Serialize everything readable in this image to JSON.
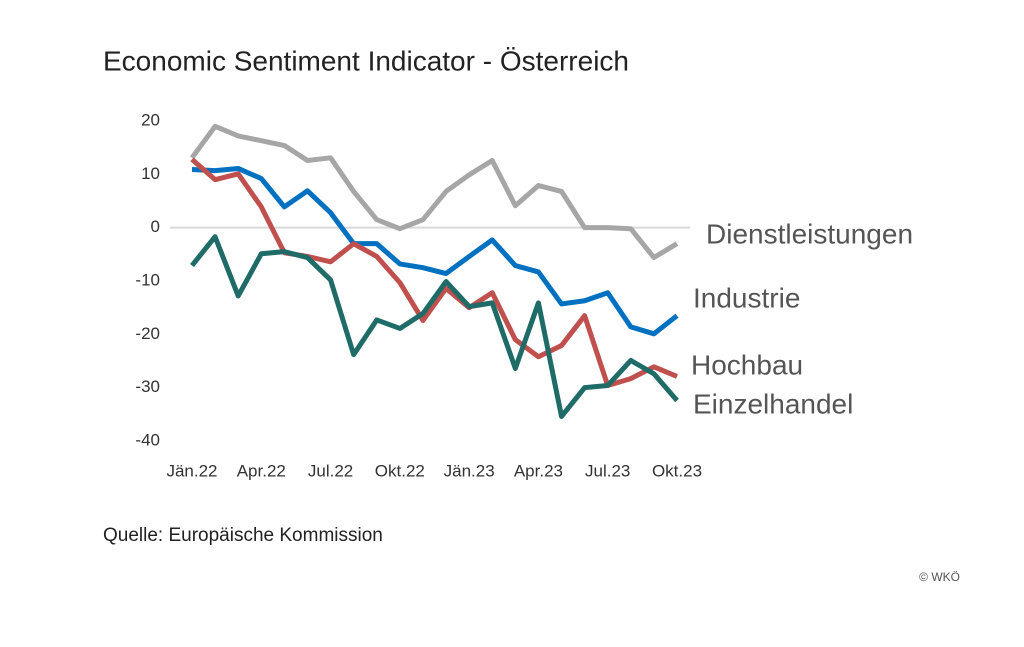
{
  "chart_data": {
    "type": "line",
    "title": "Economic Sentiment Indicator - Österreich",
    "source": "Quelle: Europäische Kommission",
    "copyright": "© WKÖ",
    "categories": [
      "Jän.22",
      null,
      null,
      "Apr.22",
      null,
      null,
      "Jul.22",
      null,
      null,
      "Okt.22",
      null,
      null,
      "Jän.23",
      null,
      null,
      "Apr.23",
      null,
      null,
      "Jul.23",
      null,
      null,
      "Okt.23"
    ],
    "series": [
      {
        "name": "Dienstleistungen",
        "color": "#a6a6a6",
        "values": [
          13.1,
          19,
          17.2,
          16.3,
          15.4,
          12.6,
          13.1,
          6.8,
          1.5,
          -0.2,
          1.5,
          6.8,
          9.9,
          12.6,
          4.1,
          7.9,
          6.8,
          0,
          0,
          -0.2,
          -5.6,
          -3
        ]
      },
      {
        "name": "Industrie",
        "color": "#0070c0",
        "values": [
          10.9,
          10.7,
          11.1,
          9.2,
          3.9,
          6.9,
          2.8,
          -3,
          -3,
          -6.8,
          -7.5,
          -8.6,
          -5.4,
          -2.3,
          -7.1,
          -8.3,
          -14.3,
          -13.7,
          -12.2,
          -18.6,
          -19.9,
          -16.5
        ]
      },
      {
        "name": "Hochbau",
        "color": "#c0504d",
        "values": [
          12.8,
          9,
          10.1,
          3.9,
          -4.7,
          -5.4,
          -6.4,
          -3,
          -5.4,
          -10.3,
          -17.4,
          -11.4,
          -15,
          -12.2,
          -21,
          -24.2,
          -22.1,
          -16.5,
          -29.6,
          -28.3,
          -26.1,
          -27.9
        ]
      },
      {
        "name": "Einzelhandel",
        "color": "#1f6b67",
        "values": [
          -7.1,
          -1.7,
          -12.8,
          -4.9,
          -4.5,
          -5.6,
          -9.8,
          -23.8,
          -17.3,
          -18.9,
          -16.1,
          -10.1,
          -14.8,
          -14.1,
          -26.4,
          -14.1,
          -35.4,
          -30,
          -29.6,
          -24.9,
          -27.4,
          -32.4
        ]
      }
    ],
    "ylim": [
      -40,
      20
    ],
    "yticks": [
      20,
      10,
      0,
      -10,
      -20,
      -30,
      -40
    ],
    "grid": false,
    "zero_line": true
  }
}
